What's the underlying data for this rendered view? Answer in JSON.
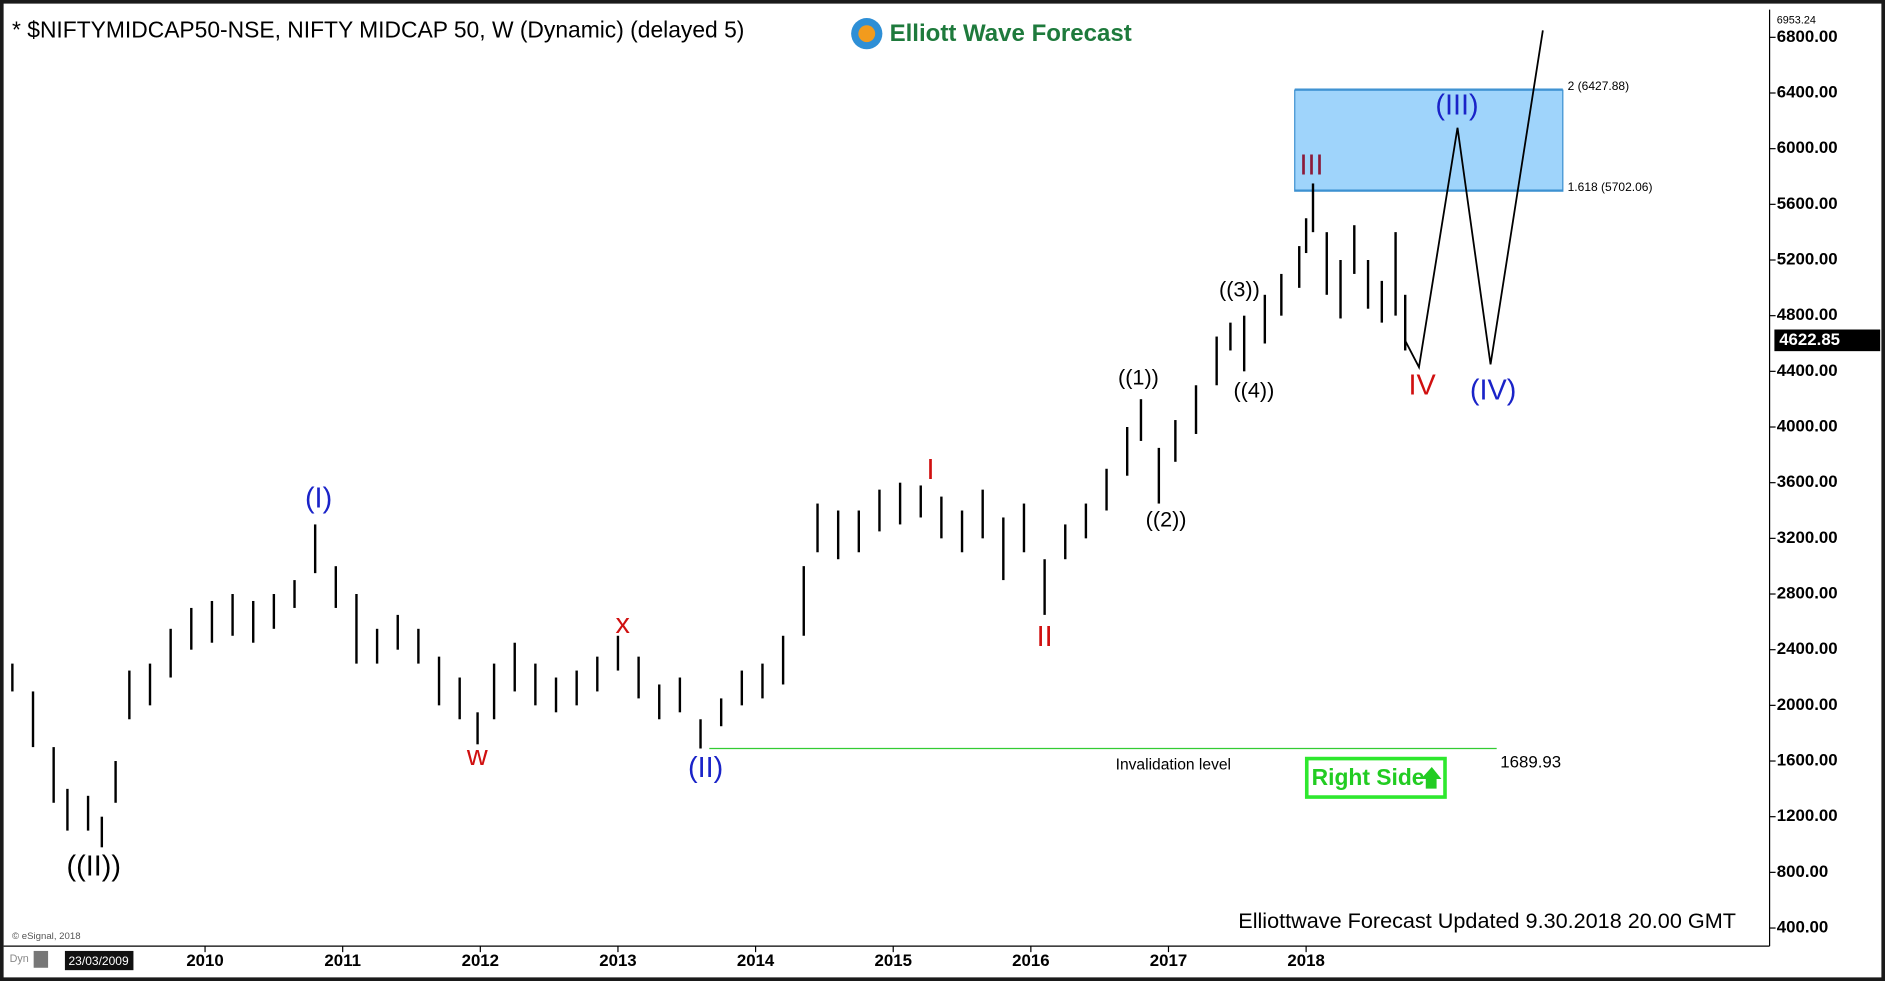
{
  "chart_data": {
    "type": "ohlc",
    "title": "* $NIFTYMIDCAP50-NSE, NIFTY MIDCAP 50, W (Dynamic) (delayed 5)",
    "logo": "Elliott Wave Forecast",
    "footer": "Elliottwave Forecast Updated 9.30.2018 20.00 GMT",
    "source": "© eSignal, 2018",
    "cursor_date": "23/03/2009",
    "mode": "Dyn",
    "badge": "Right Side",
    "color": "#000000",
    "x": [
      2008.6,
      2008.75,
      2008.9,
      2009.0,
      2009.15,
      2009.25,
      2009.35,
      2009.45,
      2009.6,
      2009.75,
      2009.9,
      2010.05,
      2010.2,
      2010.35,
      2010.5,
      2010.65,
      2010.8,
      2010.95,
      2011.1,
      2011.25,
      2011.4,
      2011.55,
      2011.7,
      2011.85,
      2011.98,
      2012.1,
      2012.25,
      2012.4,
      2012.55,
      2012.7,
      2012.85,
      2013.0,
      2013.15,
      2013.3,
      2013.45,
      2013.6,
      2013.75,
      2013.9,
      2014.05,
      2014.2,
      2014.35,
      2014.45,
      2014.6,
      2014.75,
      2014.9,
      2015.05,
      2015.2,
      2015.35,
      2015.5,
      2015.65,
      2015.8,
      2015.95,
      2016.1,
      2016.25,
      2016.4,
      2016.55,
      2016.7,
      2016.8,
      2016.93,
      2017.05,
      2017.2,
      2017.35,
      2017.45,
      2017.55,
      2017.7,
      2017.82,
      2017.95,
      2018.0,
      2018.05,
      2018.15,
      2018.25,
      2018.35,
      2018.45,
      2018.55,
      2018.65,
      2018.72
    ],
    "high": [
      2300,
      2100,
      1700,
      1400,
      1350,
      1200,
      1600,
      2250,
      2300,
      2550,
      2700,
      2750,
      2800,
      2750,
      2800,
      2900,
      3300,
      3000,
      2800,
      2550,
      2650,
      2550,
      2350,
      2200,
      1950,
      2300,
      2450,
      2300,
      2200,
      2250,
      2350,
      2500,
      2350,
      2150,
      2200,
      1900,
      2050,
      2250,
      2300,
      2500,
      3000,
      3450,
      3400,
      3400,
      3550,
      3600,
      3580,
      3500,
      3400,
      3550,
      3350,
      3450,
      3050,
      3300,
      3450,
      3700,
      4000,
      4200,
      3850,
      4050,
      4300,
      4650,
      4750,
      4800,
      4950,
      5100,
      5300,
      5500,
      5750,
      5400,
      5200,
      5450,
      5200,
      5050,
      5400,
      4950
    ],
    "low": [
      2100,
      1700,
      1300,
      1100,
      1100,
      980,
      1300,
      1900,
      2000,
      2200,
      2400,
      2450,
      2500,
      2450,
      2550,
      2700,
      2950,
      2700,
      2300,
      2300,
      2400,
      2300,
      2000,
      1900,
      1720,
      1900,
      2100,
      2000,
      1950,
      2000,
      2100,
      2250,
      2050,
      1900,
      1950,
      1690,
      1850,
      2000,
      2050,
      2150,
      2500,
      3100,
      3050,
      3100,
      3250,
      3300,
      3350,
      3200,
      3100,
      3200,
      2900,
      3100,
      2650,
      3050,
      3200,
      3400,
      3650,
      3900,
      3450,
      3750,
      3950,
      4300,
      4550,
      4400,
      4600,
      4800,
      5000,
      5250,
      5400,
      4950,
      4780,
      5100,
      4850,
      4750,
      4800,
      4550
    ],
    "last_price": 4622.85,
    "projection": {
      "x": [
        2018.72,
        2018.82,
        2019.1,
        2019.34,
        2019.72
      ],
      "values": [
        4620,
        4430,
        6150,
        4450,
        6850
      ]
    },
    "fib_levels": [
      {
        "value": 6427.88,
        "label": "2 (6427.88)"
      },
      {
        "value": 5702.06,
        "label": "1.618 (5702.06)"
      }
    ],
    "invalidation": {
      "text": "Invalidation level",
      "value": 1689.93
    },
    "wave_labels": [
      "((II))",
      "(I)",
      "w",
      "x",
      "(II)",
      "I",
      "II",
      "((1))",
      "((2))",
      "((3))",
      "((4))",
      "III",
      "IV",
      "(III)",
      "(IV)"
    ],
    "xlim": [
      2008.58,
      2021.35
    ],
    "xticks": [
      2010,
      2011,
      2012,
      2013,
      2014,
      2015,
      2016,
      2017,
      2018
    ],
    "ylim": [
      270,
      6953.24
    ],
    "yticks": [
      {
        "value": 400,
        "label": "400.00"
      },
      {
        "value": 800,
        "label": "800.00"
      },
      {
        "value": 1200,
        "label": "1200.00"
      },
      {
        "value": 1600,
        "label": "1600.00"
      },
      {
        "value": 2000,
        "label": "2000.00"
      },
      {
        "value": 2400,
        "label": "2400.00"
      },
      {
        "value": 2800,
        "label": "2800.00"
      },
      {
        "value": 3200,
        "label": "3200.00"
      },
      {
        "value": 3600,
        "label": "3600.00"
      },
      {
        "value": 4000,
        "label": "4000.00"
      },
      {
        "value": 4400,
        "label": "4400.00"
      },
      {
        "value": 4800,
        "label": "4800.00"
      },
      {
        "value": 5200,
        "label": "5200.00"
      },
      {
        "value": 5600,
        "label": "5600.00"
      },
      {
        "value": 6000,
        "label": "6000.00"
      },
      {
        "value": 6400,
        "label": "6400.00"
      },
      {
        "value": 6800,
        "label": "6800.00"
      }
    ]
  }
}
